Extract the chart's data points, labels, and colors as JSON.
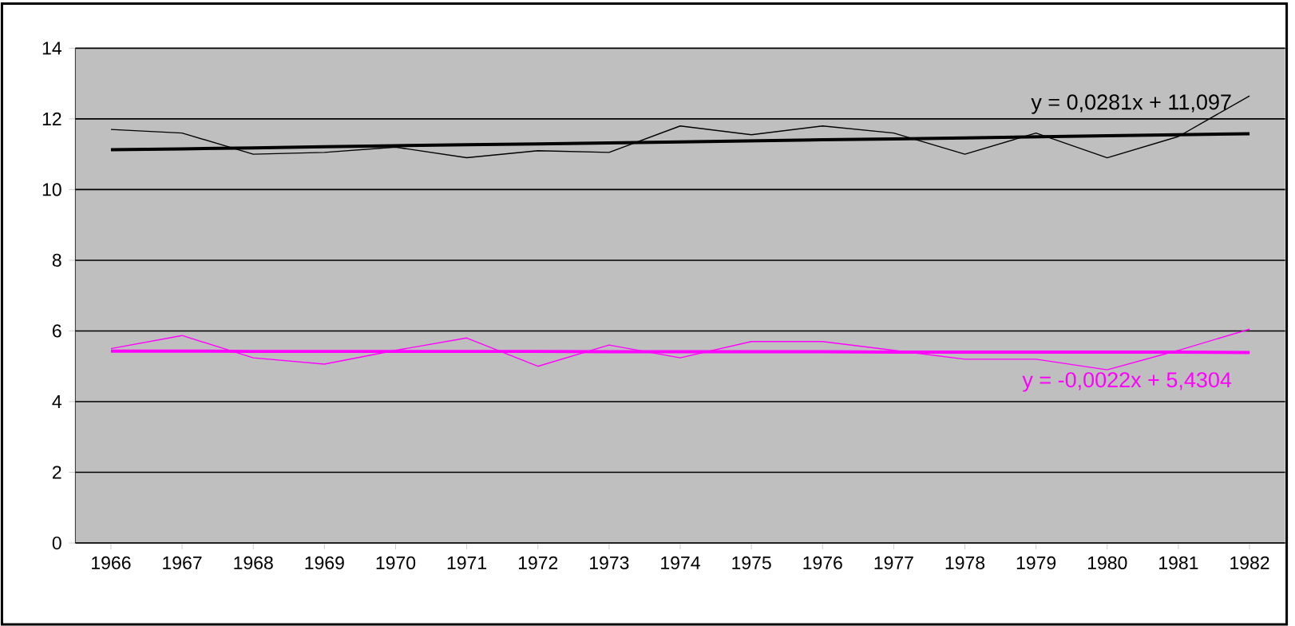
{
  "chart_data": {
    "type": "line",
    "categories": [
      "1966",
      "1967",
      "1968",
      "1969",
      "1970",
      "1971",
      "1972",
      "1973",
      "1974",
      "1975",
      "1976",
      "1977",
      "1978",
      "1979",
      "1980",
      "1981",
      "1982"
    ],
    "series": [
      {
        "color": "#000000",
        "values": [
          11.7,
          11.6,
          11.0,
          11.05,
          11.2,
          10.9,
          11.1,
          11.05,
          11.8,
          11.55,
          11.8,
          11.6,
          11.0,
          11.6,
          10.9,
          11.5,
          12.65
        ]
      },
      {
        "color": "#000000",
        "values": [
          11.13,
          11.15,
          11.18,
          11.21,
          11.24,
          11.27,
          11.29,
          11.32,
          11.35,
          11.38,
          11.41,
          11.43,
          11.46,
          11.49,
          11.52,
          11.55,
          11.58
        ]
      },
      {
        "color": "#ff00ff",
        "values": [
          5.5,
          5.87,
          5.24,
          5.06,
          5.45,
          5.8,
          5.0,
          5.6,
          5.24,
          5.7,
          5.7,
          5.45,
          5.2,
          5.2,
          4.9,
          5.45,
          6.05
        ]
      },
      {
        "color": "#ff00ff",
        "values": [
          5.43,
          5.43,
          5.42,
          5.42,
          5.42,
          5.42,
          5.42,
          5.41,
          5.41,
          5.41,
          5.41,
          5.4,
          5.4,
          5.4,
          5.4,
          5.4,
          5.39
        ]
      }
    ],
    "annotations": [
      "y = 0,0281x + 11,097",
      "y = -0,0022x + 5,4304"
    ],
    "ylim": [
      0,
      14
    ],
    "yticks": [
      0,
      2,
      4,
      6,
      8,
      10,
      12,
      14
    ],
    "grid": "y"
  }
}
